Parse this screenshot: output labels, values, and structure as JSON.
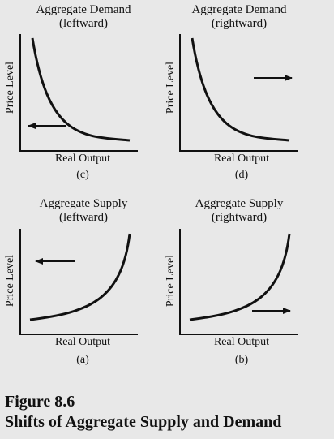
{
  "panels": {
    "c": {
      "title_line1": "Aggregate Demand",
      "title_line2": "(leftward)",
      "ylabel": "Price Level",
      "xlabel": "Real Output",
      "letter": "(c)",
      "curve": "demand",
      "arrow": "left"
    },
    "d": {
      "title_line1": "Aggregate Demand",
      "title_line2": "(rightward)",
      "ylabel": "Price Level",
      "xlabel": "Real Output",
      "letter": "(d)",
      "curve": "demand",
      "arrow": "right"
    },
    "a": {
      "title_line1": "Aggregate Supply",
      "title_line2": "(leftward)",
      "ylabel": "Price Level",
      "xlabel": "Real Output",
      "letter": "(a)",
      "curve": "supply",
      "arrow": "left"
    },
    "b": {
      "title_line1": "Aggregate Supply",
      "title_line2": "(rightward)",
      "ylabel": "Price Level",
      "xlabel": "Real Output",
      "letter": "(b)",
      "curve": "supply",
      "arrow": "right"
    }
  },
  "figure": {
    "number": "Figure 8.6",
    "caption": "Shifts of Aggregate Supply and Demand"
  },
  "colors": {
    "background": "#e8e8e8",
    "ink": "#111111"
  }
}
